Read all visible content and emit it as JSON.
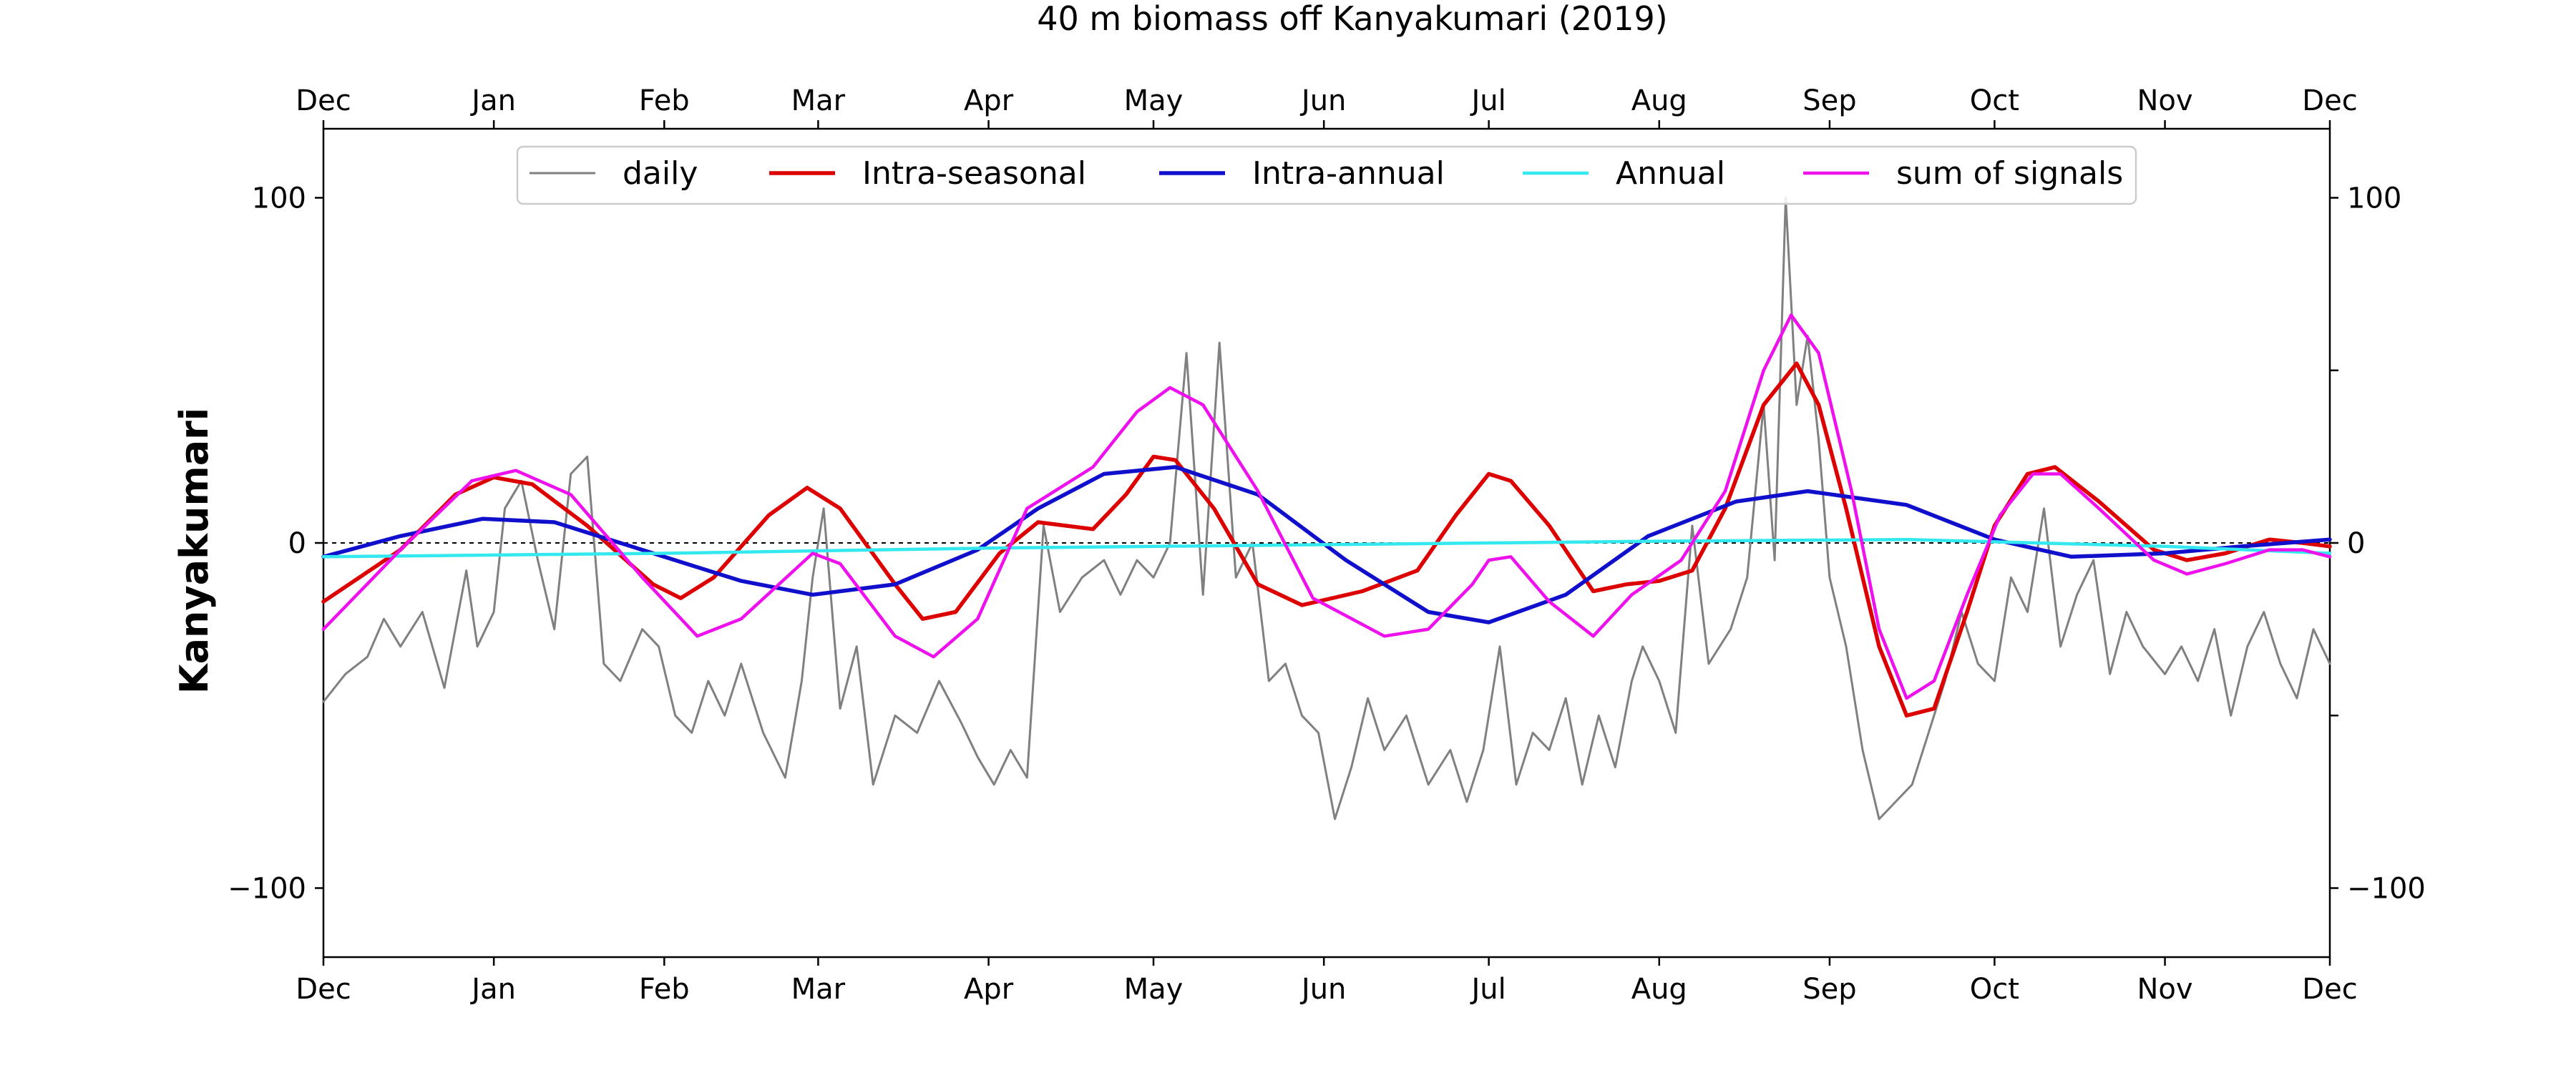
{
  "chart_data": {
    "type": "line",
    "title": "40 m biomass off Kanyakumari (2019)",
    "xlabel": "",
    "ylabel": "Kanyakumari",
    "xlim": [
      "2018-12-01",
      "2019-12-01"
    ],
    "ylim": [
      -120,
      120
    ],
    "yticks": [
      -100,
      0,
      100
    ],
    "xticks": [
      {
        "date": "2018-12-01",
        "label": "Dec"
      },
      {
        "date": "2019-01-01",
        "label": "Jan"
      },
      {
        "date": "2019-02-01",
        "label": "Feb"
      },
      {
        "date": "2019-03-01",
        "label": "Mar"
      },
      {
        "date": "2019-04-01",
        "label": "Apr"
      },
      {
        "date": "2019-05-01",
        "label": "May"
      },
      {
        "date": "2019-06-01",
        "label": "Jun"
      },
      {
        "date": "2019-07-01",
        "label": "Jul"
      },
      {
        "date": "2019-08-01",
        "label": "Aug"
      },
      {
        "date": "2019-09-01",
        "label": "Sep"
      },
      {
        "date": "2019-10-01",
        "label": "Oct"
      },
      {
        "date": "2019-11-01",
        "label": "Nov"
      },
      {
        "date": "2019-12-01",
        "label": "Dec"
      }
    ],
    "ticks_top": true,
    "ticks_right": true,
    "zero_line": true,
    "grid": false,
    "legend": {
      "placement": "top-center",
      "columns": 5
    },
    "series": [
      {
        "name": "daily",
        "color": "#808080",
        "points": [
          [
            "2018-12-01",
            -46
          ],
          [
            "2018-12-05",
            -38
          ],
          [
            "2018-12-09",
            -33
          ],
          [
            "2018-12-12",
            -22
          ],
          [
            "2018-12-15",
            -30
          ],
          [
            "2018-12-19",
            -20
          ],
          [
            "2018-12-23",
            -42
          ],
          [
            "2018-12-27",
            -8
          ],
          [
            "2018-12-29",
            -30
          ],
          [
            "2019-01-01",
            -20
          ],
          [
            "2019-01-03",
            10
          ],
          [
            "2019-01-06",
            18
          ],
          [
            "2019-01-09",
            -5
          ],
          [
            "2019-01-12",
            -25
          ],
          [
            "2019-01-15",
            20
          ],
          [
            "2019-01-18",
            25
          ],
          [
            "2019-01-21",
            -35
          ],
          [
            "2019-01-24",
            -40
          ],
          [
            "2019-01-28",
            -25
          ],
          [
            "2019-01-31",
            -30
          ],
          [
            "2019-02-03",
            -50
          ],
          [
            "2019-02-06",
            -55
          ],
          [
            "2019-02-09",
            -40
          ],
          [
            "2019-02-12",
            -50
          ],
          [
            "2019-02-15",
            -35
          ],
          [
            "2019-02-19",
            -55
          ],
          [
            "2019-02-23",
            -68
          ],
          [
            "2019-02-26",
            -40
          ],
          [
            "2019-02-28",
            -10
          ],
          [
            "2019-03-02",
            10
          ],
          [
            "2019-03-05",
            -48
          ],
          [
            "2019-03-08",
            -30
          ],
          [
            "2019-03-11",
            -70
          ],
          [
            "2019-03-15",
            -50
          ],
          [
            "2019-03-19",
            -55
          ],
          [
            "2019-03-23",
            -40
          ],
          [
            "2019-03-27",
            -52
          ],
          [
            "2019-03-30",
            -62
          ],
          [
            "2019-04-02",
            -70
          ],
          [
            "2019-04-05",
            -60
          ],
          [
            "2019-04-08",
            -68
          ],
          [
            "2019-04-11",
            5
          ],
          [
            "2019-04-14",
            -20
          ],
          [
            "2019-04-18",
            -10
          ],
          [
            "2019-04-22",
            -5
          ],
          [
            "2019-04-25",
            -15
          ],
          [
            "2019-04-28",
            -5
          ],
          [
            "2019-05-01",
            -10
          ],
          [
            "2019-05-04",
            0
          ],
          [
            "2019-05-07",
            55
          ],
          [
            "2019-05-10",
            -15
          ],
          [
            "2019-05-13",
            58
          ],
          [
            "2019-05-16",
            -10
          ],
          [
            "2019-05-19",
            0
          ],
          [
            "2019-05-22",
            -40
          ],
          [
            "2019-05-25",
            -35
          ],
          [
            "2019-05-28",
            -50
          ],
          [
            "2019-05-31",
            -55
          ],
          [
            "2019-06-03",
            -80
          ],
          [
            "2019-06-06",
            -65
          ],
          [
            "2019-06-09",
            -45
          ],
          [
            "2019-06-12",
            -60
          ],
          [
            "2019-06-16",
            -50
          ],
          [
            "2019-06-20",
            -70
          ],
          [
            "2019-06-24",
            -60
          ],
          [
            "2019-06-27",
            -75
          ],
          [
            "2019-06-30",
            -60
          ],
          [
            "2019-07-03",
            -30
          ],
          [
            "2019-07-06",
            -70
          ],
          [
            "2019-07-09",
            -55
          ],
          [
            "2019-07-12",
            -60
          ],
          [
            "2019-07-15",
            -45
          ],
          [
            "2019-07-18",
            -70
          ],
          [
            "2019-07-21",
            -50
          ],
          [
            "2019-07-24",
            -65
          ],
          [
            "2019-07-27",
            -40
          ],
          [
            "2019-07-29",
            -30
          ],
          [
            "2019-08-01",
            -40
          ],
          [
            "2019-08-04",
            -55
          ],
          [
            "2019-08-07",
            5
          ],
          [
            "2019-08-10",
            -35
          ],
          [
            "2019-08-14",
            -25
          ],
          [
            "2019-08-17",
            -10
          ],
          [
            "2019-08-20",
            40
          ],
          [
            "2019-08-22",
            -5
          ],
          [
            "2019-08-24",
            100
          ],
          [
            "2019-08-26",
            40
          ],
          [
            "2019-08-28",
            60
          ],
          [
            "2019-08-30",
            30
          ],
          [
            "2019-09-01",
            -10
          ],
          [
            "2019-09-04",
            -30
          ],
          [
            "2019-09-07",
            -60
          ],
          [
            "2019-09-10",
            -80
          ],
          [
            "2019-09-13",
            -75
          ],
          [
            "2019-09-16",
            -70
          ],
          [
            "2019-09-19",
            -55
          ],
          [
            "2019-09-22",
            -40
          ],
          [
            "2019-09-25",
            -20
          ],
          [
            "2019-09-28",
            -35
          ],
          [
            "2019-10-01",
            -40
          ],
          [
            "2019-10-04",
            -10
          ],
          [
            "2019-10-07",
            -20
          ],
          [
            "2019-10-10",
            10
          ],
          [
            "2019-10-13",
            -30
          ],
          [
            "2019-10-16",
            -15
          ],
          [
            "2019-10-19",
            -5
          ],
          [
            "2019-10-22",
            -38
          ],
          [
            "2019-10-25",
            -20
          ],
          [
            "2019-10-28",
            -30
          ],
          [
            "2019-11-01",
            -38
          ],
          [
            "2019-11-04",
            -30
          ],
          [
            "2019-11-07",
            -40
          ],
          [
            "2019-11-10",
            -25
          ],
          [
            "2019-11-13",
            -50
          ],
          [
            "2019-11-16",
            -30
          ],
          [
            "2019-11-19",
            -20
          ],
          [
            "2019-11-22",
            -35
          ],
          [
            "2019-11-25",
            -45
          ],
          [
            "2019-11-28",
            -25
          ],
          [
            "2019-12-01",
            -35
          ]
        ]
      },
      {
        "name": "Intra-seasonal",
        "color": "#dd0000",
        "points": [
          [
            "2018-12-01",
            -17
          ],
          [
            "2018-12-15",
            -2
          ],
          [
            "2018-12-25",
            14
          ],
          [
            "2019-01-01",
            19
          ],
          [
            "2019-01-08",
            17
          ],
          [
            "2019-01-18",
            5
          ],
          [
            "2019-01-30",
            -12
          ],
          [
            "2019-02-04",
            -16
          ],
          [
            "2019-02-10",
            -10
          ],
          [
            "2019-02-20",
            8
          ],
          [
            "2019-02-27",
            16
          ],
          [
            "2019-03-05",
            10
          ],
          [
            "2019-03-15",
            -12
          ],
          [
            "2019-03-20",
            -22
          ],
          [
            "2019-03-26",
            -20
          ],
          [
            "2019-04-03",
            -3
          ],
          [
            "2019-04-10",
            6
          ],
          [
            "2019-04-20",
            4
          ],
          [
            "2019-04-26",
            14
          ],
          [
            "2019-05-01",
            25
          ],
          [
            "2019-05-05",
            24
          ],
          [
            "2019-05-12",
            10
          ],
          [
            "2019-05-20",
            -12
          ],
          [
            "2019-05-28",
            -18
          ],
          [
            "2019-06-08",
            -14
          ],
          [
            "2019-06-18",
            -8
          ],
          [
            "2019-06-25",
            8
          ],
          [
            "2019-07-01",
            20
          ],
          [
            "2019-07-05",
            18
          ],
          [
            "2019-07-12",
            5
          ],
          [
            "2019-07-20",
            -14
          ],
          [
            "2019-07-26",
            -12
          ],
          [
            "2019-08-01",
            -11
          ],
          [
            "2019-08-07",
            -8
          ],
          [
            "2019-08-13",
            10
          ],
          [
            "2019-08-20",
            40
          ],
          [
            "2019-08-26",
            52
          ],
          [
            "2019-08-30",
            40
          ],
          [
            "2019-09-04",
            10
          ],
          [
            "2019-09-10",
            -30
          ],
          [
            "2019-09-15",
            -50
          ],
          [
            "2019-09-20",
            -48
          ],
          [
            "2019-09-26",
            -20
          ],
          [
            "2019-10-01",
            5
          ],
          [
            "2019-10-07",
            20
          ],
          [
            "2019-10-12",
            22
          ],
          [
            "2019-10-20",
            12
          ],
          [
            "2019-10-30",
            -2
          ],
          [
            "2019-11-05",
            -5
          ],
          [
            "2019-11-12",
            -3
          ],
          [
            "2019-11-20",
            1
          ],
          [
            "2019-11-26",
            0
          ],
          [
            "2019-12-01",
            -1
          ]
        ]
      },
      {
        "name": "Intra-annual",
        "color": "#1010cc",
        "points": [
          [
            "2018-12-01",
            -4
          ],
          [
            "2018-12-15",
            2
          ],
          [
            "2018-12-30",
            7
          ],
          [
            "2019-01-12",
            6
          ],
          [
            "2019-01-30",
            -3
          ],
          [
            "2019-02-15",
            -11
          ],
          [
            "2019-02-28",
            -15
          ],
          [
            "2019-03-15",
            -12
          ],
          [
            "2019-03-30",
            -2
          ],
          [
            "2019-04-10",
            10
          ],
          [
            "2019-04-22",
            20
          ],
          [
            "2019-05-05",
            22
          ],
          [
            "2019-05-20",
            14
          ],
          [
            "2019-06-05",
            -5
          ],
          [
            "2019-06-20",
            -20
          ],
          [
            "2019-07-01",
            -23
          ],
          [
            "2019-07-15",
            -15
          ],
          [
            "2019-07-30",
            2
          ],
          [
            "2019-08-15",
            12
          ],
          [
            "2019-08-28",
            15
          ],
          [
            "2019-09-15",
            11
          ],
          [
            "2019-10-01",
            1
          ],
          [
            "2019-10-15",
            -4
          ],
          [
            "2019-11-01",
            -3
          ],
          [
            "2019-11-15",
            -1
          ],
          [
            "2019-12-01",
            1
          ]
        ]
      },
      {
        "name": "Annual",
        "color": "#33e8ee",
        "points": [
          [
            "2018-12-01",
            -4
          ],
          [
            "2019-02-01",
            -3
          ],
          [
            "2019-04-01",
            -1.5
          ],
          [
            "2019-06-01",
            -0.5
          ],
          [
            "2019-08-01",
            0.5
          ],
          [
            "2019-09-15",
            1
          ],
          [
            "2019-11-01",
            -1
          ],
          [
            "2019-12-01",
            -3
          ]
        ]
      },
      {
        "name": "sum of signals",
        "color": "#ee11ee",
        "points": [
          [
            "2018-12-01",
            -25
          ],
          [
            "2018-12-15",
            -2
          ],
          [
            "2018-12-28",
            18
          ],
          [
            "2019-01-05",
            21
          ],
          [
            "2019-01-15",
            14
          ],
          [
            "2019-01-28",
            -10
          ],
          [
            "2019-02-07",
            -27
          ],
          [
            "2019-02-15",
            -22
          ],
          [
            "2019-02-28",
            -3
          ],
          [
            "2019-03-05",
            -6
          ],
          [
            "2019-03-15",
            -27
          ],
          [
            "2019-03-22",
            -33
          ],
          [
            "2019-03-30",
            -22
          ],
          [
            "2019-04-08",
            10
          ],
          [
            "2019-04-20",
            22
          ],
          [
            "2019-04-28",
            38
          ],
          [
            "2019-05-04",
            45
          ],
          [
            "2019-05-10",
            40
          ],
          [
            "2019-05-20",
            15
          ],
          [
            "2019-05-30",
            -16
          ],
          [
            "2019-06-12",
            -27
          ],
          [
            "2019-06-20",
            -25
          ],
          [
            "2019-06-28",
            -12
          ],
          [
            "2019-07-01",
            -5
          ],
          [
            "2019-07-05",
            -4
          ],
          [
            "2019-07-12",
            -17
          ],
          [
            "2019-07-20",
            -27
          ],
          [
            "2019-07-27",
            -15
          ],
          [
            "2019-08-05",
            -5
          ],
          [
            "2019-08-13",
            15
          ],
          [
            "2019-08-20",
            50
          ],
          [
            "2019-08-25",
            66
          ],
          [
            "2019-08-30",
            55
          ],
          [
            "2019-09-05",
            15
          ],
          [
            "2019-09-10",
            -25
          ],
          [
            "2019-09-15",
            -45
          ],
          [
            "2019-09-20",
            -40
          ],
          [
            "2019-09-26",
            -15
          ],
          [
            "2019-10-02",
            8
          ],
          [
            "2019-10-08",
            20
          ],
          [
            "2019-10-13",
            20
          ],
          [
            "2019-10-20",
            10
          ],
          [
            "2019-10-30",
            -5
          ],
          [
            "2019-11-05",
            -9
          ],
          [
            "2019-11-12",
            -6
          ],
          [
            "2019-11-20",
            -2
          ],
          [
            "2019-11-26",
            -2
          ],
          [
            "2019-12-01",
            -4
          ]
        ]
      }
    ]
  }
}
